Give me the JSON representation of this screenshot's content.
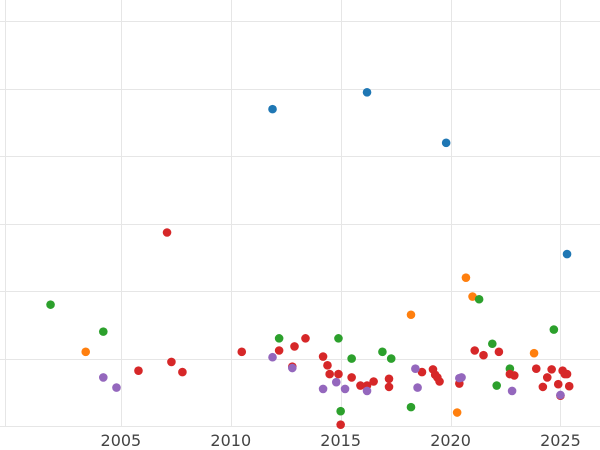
{
  "chart_data": {
    "type": "scatter",
    "title": "",
    "xlabel": "",
    "ylabel": "",
    "grid": true,
    "xlim": [
      1999.5,
      2026.8
    ],
    "ylim": [
      0,
      6.2
    ],
    "x_ticks": [
      2005,
      2010,
      2015,
      2020,
      2025
    ],
    "x_tick_labels": [
      "2005",
      "2010",
      "2015",
      "2020",
      "2025"
    ],
    "y_gridlines": [
      0,
      1,
      2,
      3,
      4,
      5,
      6
    ],
    "series": [
      {
        "color": "#1f77b4",
        "points": [
          [
            2011.9,
            4.7
          ],
          [
            2016.2,
            4.95
          ],
          [
            2019.8,
            4.2
          ],
          [
            2025.3,
            2.55
          ]
        ]
      },
      {
        "color": "#ff7f0e",
        "points": [
          [
            2003.4,
            1.1
          ],
          [
            2018.2,
            1.65
          ],
          [
            2020.3,
            0.2
          ],
          [
            2020.7,
            2.2
          ],
          [
            2021.0,
            1.92
          ],
          [
            2023.8,
            1.08
          ]
        ]
      },
      {
        "color": "#2ca02c",
        "points": [
          [
            2001.8,
            1.8
          ],
          [
            2004.2,
            1.4
          ],
          [
            2012.2,
            1.3
          ],
          [
            2014.9,
            1.3
          ],
          [
            2015.0,
            0.22
          ],
          [
            2015.5,
            1.0
          ],
          [
            2016.9,
            1.1
          ],
          [
            2017.3,
            1.0
          ],
          [
            2018.2,
            0.28
          ],
          [
            2021.3,
            1.88
          ],
          [
            2021.9,
            1.22
          ],
          [
            2022.1,
            0.6
          ],
          [
            2022.7,
            0.85
          ],
          [
            2024.7,
            1.43
          ]
        ]
      },
      {
        "color": "#d62728",
        "points": [
          [
            2005.8,
            0.82
          ],
          [
            2007.1,
            2.87
          ],
          [
            2007.3,
            0.95
          ],
          [
            2007.8,
            0.8
          ],
          [
            2010.5,
            1.1
          ],
          [
            2012.2,
            1.12
          ],
          [
            2012.8,
            0.88
          ],
          [
            2012.9,
            1.18
          ],
          [
            2013.4,
            1.3
          ],
          [
            2014.2,
            1.03
          ],
          [
            2014.4,
            0.9
          ],
          [
            2014.5,
            0.77
          ],
          [
            2014.9,
            0.77
          ],
          [
            2015.0,
            0.02
          ],
          [
            2015.5,
            0.72
          ],
          [
            2015.9,
            0.6
          ],
          [
            2016.2,
            0.6
          ],
          [
            2016.5,
            0.66
          ],
          [
            2017.2,
            0.7
          ],
          [
            2017.2,
            0.58
          ],
          [
            2018.7,
            0.8
          ],
          [
            2019.2,
            0.84
          ],
          [
            2019.3,
            0.76
          ],
          [
            2019.4,
            0.72
          ],
          [
            2019.5,
            0.66
          ],
          [
            2020.4,
            0.63
          ],
          [
            2021.1,
            1.12
          ],
          [
            2021.5,
            1.05
          ],
          [
            2022.2,
            1.1
          ],
          [
            2022.7,
            0.77
          ],
          [
            2022.9,
            0.75
          ],
          [
            2023.9,
            0.85
          ],
          [
            2024.2,
            0.58
          ],
          [
            2024.4,
            0.72
          ],
          [
            2024.6,
            0.84
          ],
          [
            2024.9,
            0.62
          ],
          [
            2025.0,
            0.45
          ],
          [
            2025.1,
            0.82
          ],
          [
            2025.2,
            0.77
          ],
          [
            2025.3,
            0.77
          ],
          [
            2025.4,
            0.59
          ]
        ]
      },
      {
        "color": "#9467bd",
        "points": [
          [
            2004.2,
            0.72
          ],
          [
            2004.8,
            0.57
          ],
          [
            2011.9,
            1.02
          ],
          [
            2012.8,
            0.86
          ],
          [
            2014.2,
            0.55
          ],
          [
            2014.8,
            0.65
          ],
          [
            2015.2,
            0.55
          ],
          [
            2016.2,
            0.52
          ],
          [
            2018.4,
            0.85
          ],
          [
            2018.5,
            0.57
          ],
          [
            2020.4,
            0.71
          ],
          [
            2020.5,
            0.72
          ],
          [
            2022.8,
            0.52
          ],
          [
            2025.0,
            0.46
          ]
        ]
      }
    ]
  }
}
